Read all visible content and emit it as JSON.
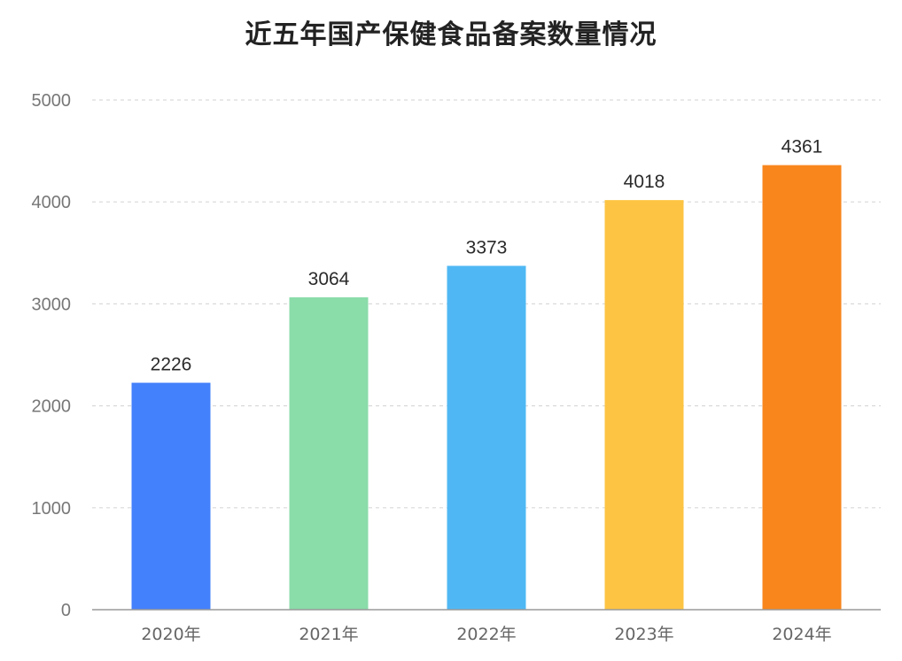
{
  "chart_data": {
    "type": "bar",
    "title": "近五年国产保健食品备案数量情况",
    "categories": [
      "2020年",
      "2021年",
      "2022年",
      "2023年",
      "2024年"
    ],
    "values": [
      2226,
      3064,
      3373,
      4018,
      4361
    ],
    "bar_colors": [
      "#4380FB",
      "#8ADCA9",
      "#4FB8F4",
      "#FDC443",
      "#F8861C"
    ],
    "ylim": [
      0,
      5000
    ],
    "yticks": [
      0,
      1000,
      2000,
      3000,
      4000,
      5000
    ],
    "grid": true,
    "grid_style": "dashed",
    "legend": "none"
  }
}
